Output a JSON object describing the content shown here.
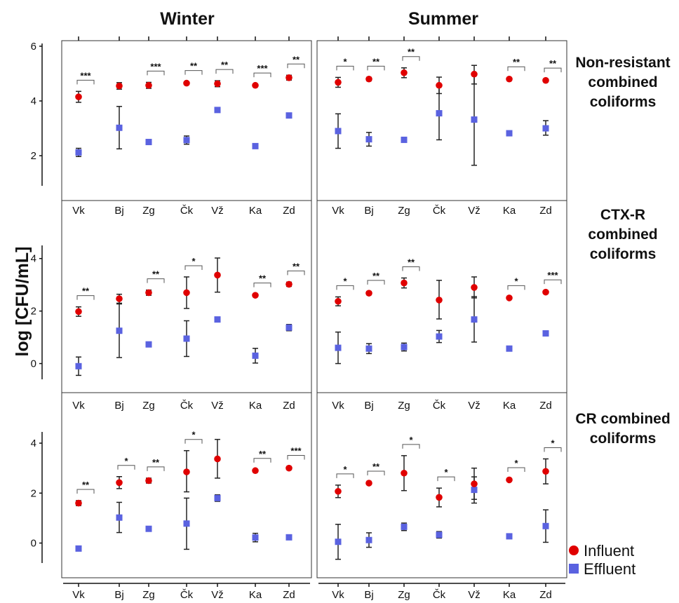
{
  "chart_data": {
    "type": "scatter",
    "ylabel": "log [CFU/mL]",
    "columns": [
      "Winter",
      "Summer"
    ],
    "categories": [
      "Vk",
      "Bj",
      "Zg",
      "Čk",
      "Vž",
      "Ka",
      "Zd"
    ],
    "legend": {
      "position": "bottom-right",
      "entries": [
        {
          "name": "Influent",
          "color": "#e00000",
          "marker": "circle"
        },
        {
          "name": "Effluent",
          "color": "#5a62e0",
          "marker": "square"
        }
      ]
    },
    "panels": [
      {
        "row": "Non-resistant combined coliforms",
        "ylim": [
          0.9,
          6.1
        ],
        "yticks": [
          2,
          4,
          6
        ],
        "winter": {
          "influent": [
            {
              "y": 4.15,
              "lo": 3.95,
              "hi": 4.35
            },
            {
              "y": 4.55,
              "lo": 4.43,
              "hi": 4.67
            },
            {
              "y": 4.57,
              "lo": 4.46,
              "hi": 4.68
            },
            {
              "y": 4.65,
              "lo": 4.6,
              "hi": 4.7
            },
            {
              "y": 4.63,
              "lo": 4.52,
              "hi": 4.74
            },
            {
              "y": 4.57,
              "lo": 4.53,
              "hi": 4.61
            },
            {
              "y": 4.85,
              "lo": 4.76,
              "hi": 4.94
            }
          ],
          "effluent": [
            {
              "y": 2.12,
              "lo": 1.97,
              "hi": 2.27
            },
            {
              "y": 3.02,
              "lo": 2.25,
              "hi": 3.8
            },
            {
              "y": 2.5,
              "lo": 2.47,
              "hi": 2.53
            },
            {
              "y": 2.57,
              "lo": 2.42,
              "hi": 2.72
            },
            {
              "y": 3.67,
              "lo": 3.6,
              "hi": 3.74
            },
            {
              "y": 2.35,
              "lo": 2.28,
              "hi": 2.42
            },
            {
              "y": 3.47,
              "lo": 3.43,
              "hi": 3.51
            }
          ],
          "significance": [
            "***",
            "",
            "***",
            "**",
            "**",
            "***",
            "**"
          ]
        },
        "summer": {
          "influent": [
            {
              "y": 4.68,
              "lo": 4.5,
              "hi": 4.86
            },
            {
              "y": 4.8,
              "lo": 4.74,
              "hi": 4.86
            },
            {
              "y": 5.03,
              "lo": 4.85,
              "hi": 5.21
            },
            {
              "y": 4.57,
              "lo": 4.27,
              "hi": 4.87
            },
            {
              "y": 4.98,
              "lo": 4.62,
              "hi": 5.3
            },
            {
              "y": 4.8,
              "lo": 4.76,
              "hi": 4.84
            },
            {
              "y": 4.75,
              "lo": 4.71,
              "hi": 4.79
            }
          ],
          "effluent": [
            {
              "y": 2.9,
              "lo": 2.27,
              "hi": 3.53
            },
            {
              "y": 2.6,
              "lo": 2.35,
              "hi": 2.85
            },
            {
              "y": 2.58,
              "lo": 2.55,
              "hi": 2.61
            },
            {
              "y": 3.55,
              "lo": 2.58,
              "hi": 4.53
            },
            {
              "y": 3.32,
              "lo": 1.65,
              "hi": 4.98
            },
            {
              "y": 2.82,
              "lo": 2.78,
              "hi": 2.86
            },
            {
              "y": 3.0,
              "lo": 2.75,
              "hi": 3.28
            }
          ],
          "significance": [
            "*",
            "**",
            "**",
            "",
            "",
            "**",
            "**"
          ]
        }
      },
      {
        "row": "CTX-R combined coliforms",
        "ylim": [
          -0.6,
          4.5
        ],
        "yticks": [
          0,
          2,
          4
        ],
        "winter": {
          "influent": [
            {
              "y": 1.98,
              "lo": 1.8,
              "hi": 2.16
            },
            {
              "y": 2.47,
              "lo": 2.3,
              "hi": 2.64
            },
            {
              "y": 2.7,
              "lo": 2.6,
              "hi": 2.8
            },
            {
              "y": 2.7,
              "lo": 2.1,
              "hi": 3.3
            },
            {
              "y": 3.37,
              "lo": 2.72,
              "hi": 4.02
            },
            {
              "y": 2.6,
              "lo": 2.56,
              "hi": 2.64
            },
            {
              "y": 3.02,
              "lo": 2.94,
              "hi": 3.1
            }
          ],
          "effluent": [
            {
              "y": -0.1,
              "lo": -0.45,
              "hi": 0.25
            },
            {
              "y": 1.25,
              "lo": 0.23,
              "hi": 2.27
            },
            {
              "y": 0.73,
              "lo": 0.7,
              "hi": 0.76
            },
            {
              "y": 0.95,
              "lo": 0.27,
              "hi": 1.63
            },
            {
              "y": 1.68,
              "lo": 1.64,
              "hi": 1.72
            },
            {
              "y": 0.3,
              "lo": 0.02,
              "hi": 0.58
            },
            {
              "y": 1.37,
              "lo": 1.25,
              "hi": 1.49
            }
          ],
          "significance": [
            "**",
            "",
            "**",
            "*",
            "",
            "**",
            "**"
          ]
        },
        "summer": {
          "influent": [
            {
              "y": 2.37,
              "lo": 2.2,
              "hi": 2.54
            },
            {
              "y": 2.68,
              "lo": 2.62,
              "hi": 2.74
            },
            {
              "y": 3.07,
              "lo": 2.88,
              "hi": 3.26
            },
            {
              "y": 2.42,
              "lo": 1.7,
              "hi": 3.17
            },
            {
              "y": 2.9,
              "lo": 2.5,
              "hi": 3.3
            },
            {
              "y": 2.5,
              "lo": 2.46,
              "hi": 2.54
            },
            {
              "y": 2.72,
              "lo": 2.68,
              "hi": 2.76
            }
          ],
          "effluent": [
            {
              "y": 0.6,
              "lo": 0.0,
              "hi": 1.2
            },
            {
              "y": 0.57,
              "lo": 0.38,
              "hi": 0.76
            },
            {
              "y": 0.63,
              "lo": 0.48,
              "hi": 0.78
            },
            {
              "y": 1.03,
              "lo": 0.8,
              "hi": 1.26
            },
            {
              "y": 1.68,
              "lo": 0.82,
              "hi": 2.55
            },
            {
              "y": 0.57,
              "lo": 0.54,
              "hi": 0.6
            },
            {
              "y": 1.15,
              "lo": 1.11,
              "hi": 1.19
            }
          ],
          "significance": [
            "*",
            "**",
            "**",
            "",
            "",
            "*",
            "***"
          ]
        }
      },
      {
        "row": "CR combined coliforms",
        "ylim": [
          -0.8,
          4.45
        ],
        "yticks": [
          0,
          2,
          4
        ],
        "winter": {
          "influent": [
            {
              "y": 1.6,
              "lo": 1.5,
              "hi": 1.7
            },
            {
              "y": 2.42,
              "lo": 2.18,
              "hi": 2.66
            },
            {
              "y": 2.5,
              "lo": 2.4,
              "hi": 2.6
            },
            {
              "y": 2.85,
              "lo": 2.05,
              "hi": 3.7
            },
            {
              "y": 3.37,
              "lo": 2.6,
              "hi": 4.15
            },
            {
              "y": 2.9,
              "lo": 2.86,
              "hi": 2.94
            },
            {
              "y": 3.0,
              "lo": 2.94,
              "hi": 3.06
            }
          ],
          "effluent": [
            {
              "y": -0.22,
              "lo": -0.25,
              "hi": -0.19
            },
            {
              "y": 1.02,
              "lo": 0.42,
              "hi": 1.63
            },
            {
              "y": 0.57,
              "lo": 0.54,
              "hi": 0.6
            },
            {
              "y": 0.78,
              "lo": -0.25,
              "hi": 1.8
            },
            {
              "y": 1.8,
              "lo": 1.67,
              "hi": 1.93
            },
            {
              "y": 0.22,
              "lo": 0.05,
              "hi": 0.39
            },
            {
              "y": 0.23,
              "lo": 0.2,
              "hi": 0.26
            }
          ],
          "significance": [
            "**",
            "*",
            "**",
            "*",
            "",
            "**",
            "***"
          ]
        },
        "summer": {
          "influent": [
            {
              "y": 2.07,
              "lo": 1.82,
              "hi": 2.32
            },
            {
              "y": 2.4,
              "lo": 2.37,
              "hi": 2.43
            },
            {
              "y": 2.8,
              "lo": 2.1,
              "hi": 3.5
            },
            {
              "y": 1.83,
              "lo": 1.45,
              "hi": 2.2
            },
            {
              "y": 2.37,
              "lo": 1.75,
              "hi": 3.0
            },
            {
              "y": 2.53,
              "lo": 2.49,
              "hi": 2.57
            },
            {
              "y": 2.87,
              "lo": 2.37,
              "hi": 3.37
            }
          ],
          "effluent": [
            {
              "y": 0.05,
              "lo": -0.65,
              "hi": 0.75
            },
            {
              "y": 0.12,
              "lo": -0.17,
              "hi": 0.41
            },
            {
              "y": 0.65,
              "lo": 0.5,
              "hi": 0.8
            },
            {
              "y": 0.33,
              "lo": 0.2,
              "hi": 0.46
            },
            {
              "y": 2.13,
              "lo": 1.6,
              "hi": 2.65
            },
            {
              "y": 0.27,
              "lo": 0.24,
              "hi": 0.3
            },
            {
              "y": 0.68,
              "lo": 0.03,
              "hi": 1.33
            }
          ],
          "significance": [
            "*",
            "**",
            "*",
            "*",
            "",
            "*",
            "*"
          ]
        }
      }
    ]
  },
  "row_labels": [
    [
      "Non-resistant",
      "combined",
      "coliforms"
    ],
    [
      "CTX-R",
      "combined",
      "coliforms"
    ],
    [
      "CR combined",
      "coliforms"
    ]
  ]
}
